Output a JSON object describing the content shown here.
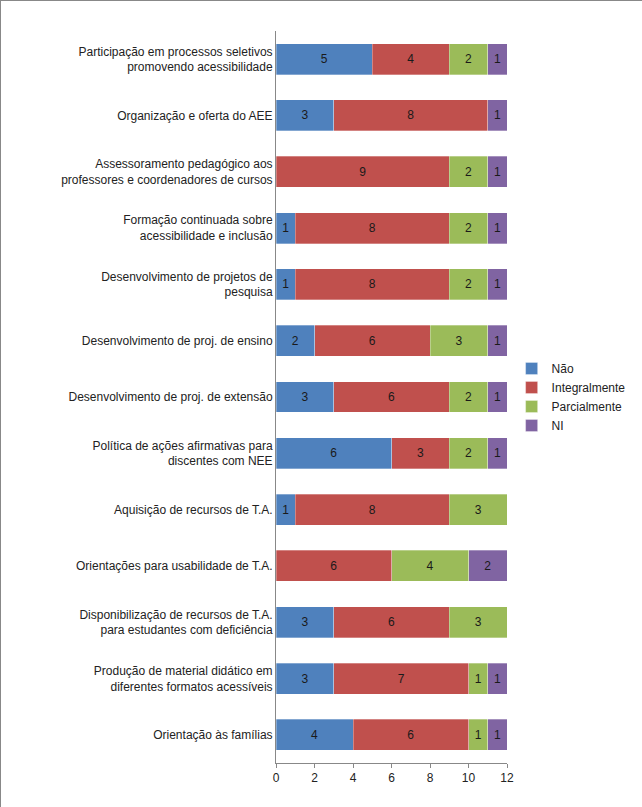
{
  "chart_data": {
    "type": "bar",
    "orientation": "horizontal",
    "stacked": true,
    "data_labels": true,
    "grid": false,
    "legend": "right",
    "categories": [
      "Participação em processos seletivos promovendo acessibilidade",
      "Organização e oferta do AEE",
      "Assessoramento pedagógico aos professores e coordenadores de cursos",
      "Formação continuada sobre acessibilidade e inclusão",
      "Desenvolvimento de projetos de pesquisa",
      "Desenvolvimento de proj. de ensino",
      "Desenvolvimento de proj. de extensão",
      "Política de ações afirmativas para discentes com NEE",
      "Aquisição de recursos de T.A.",
      "Orientações para usabilidade de T.A.",
      "Disponibilização de recursos de T.A. para estudantes com deficiência",
      "Produção de material didático em diferentes formatos acessíveis",
      "Orientação às famílias"
    ],
    "series": [
      {
        "name": "Não",
        "color": "#4f81bd",
        "values": [
          5,
          3,
          null,
          1,
          1,
          2,
          3,
          6,
          1,
          null,
          3,
          3,
          4
        ]
      },
      {
        "name": "Integralmente",
        "color": "#c0504d",
        "values": [
          4,
          8,
          9,
          8,
          8,
          6,
          6,
          3,
          8,
          6,
          6,
          7,
          6
        ]
      },
      {
        "name": "Parcialmente",
        "color": "#9bbb59",
        "values": [
          2,
          null,
          2,
          2,
          2,
          3,
          2,
          2,
          3,
          4,
          3,
          1,
          1
        ]
      },
      {
        "name": "NI",
        "color": "#8064a2",
        "values": [
          1,
          1,
          1,
          1,
          1,
          1,
          1,
          1,
          null,
          2,
          null,
          1,
          1
        ]
      }
    ],
    "xlim": [
      0,
      12
    ],
    "xticks": [
      0,
      2,
      4,
      6,
      8,
      10,
      12
    ]
  }
}
